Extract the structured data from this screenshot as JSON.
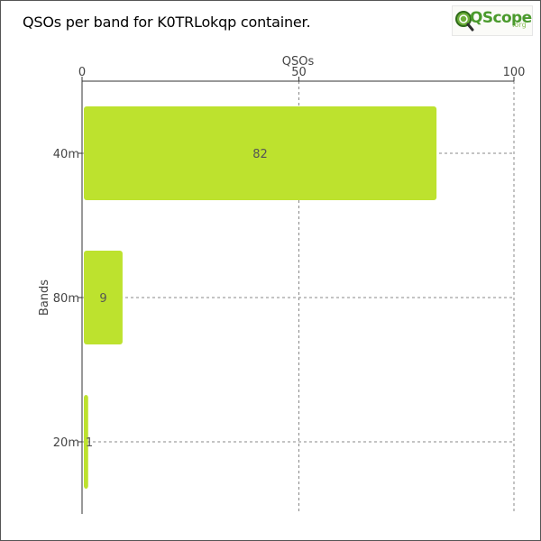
{
  "title": "QSOs per band for K0TRLokqp container.",
  "logo": {
    "text": "QScope",
    "sub": ".org",
    "mark": "magnifier-q-icon"
  },
  "colors": {
    "bar": "#bde22e",
    "axis": "#333333",
    "grid": "#888888",
    "text": "#444444",
    "value_text": "#555555"
  },
  "chart_data": {
    "type": "bar",
    "orientation": "horizontal",
    "title": "QSOs per band for K0TRLokqp container.",
    "xlabel": "QSOs",
    "ylabel": "Bands",
    "xaxis_position": "top",
    "xlim": [
      0,
      100
    ],
    "xticks": [
      0,
      50,
      100
    ],
    "grid": true,
    "categories": [
      "40m",
      "80m",
      "20m"
    ],
    "values": [
      82,
      9,
      1
    ],
    "data_labels": [
      "82",
      "9",
      "1"
    ]
  }
}
